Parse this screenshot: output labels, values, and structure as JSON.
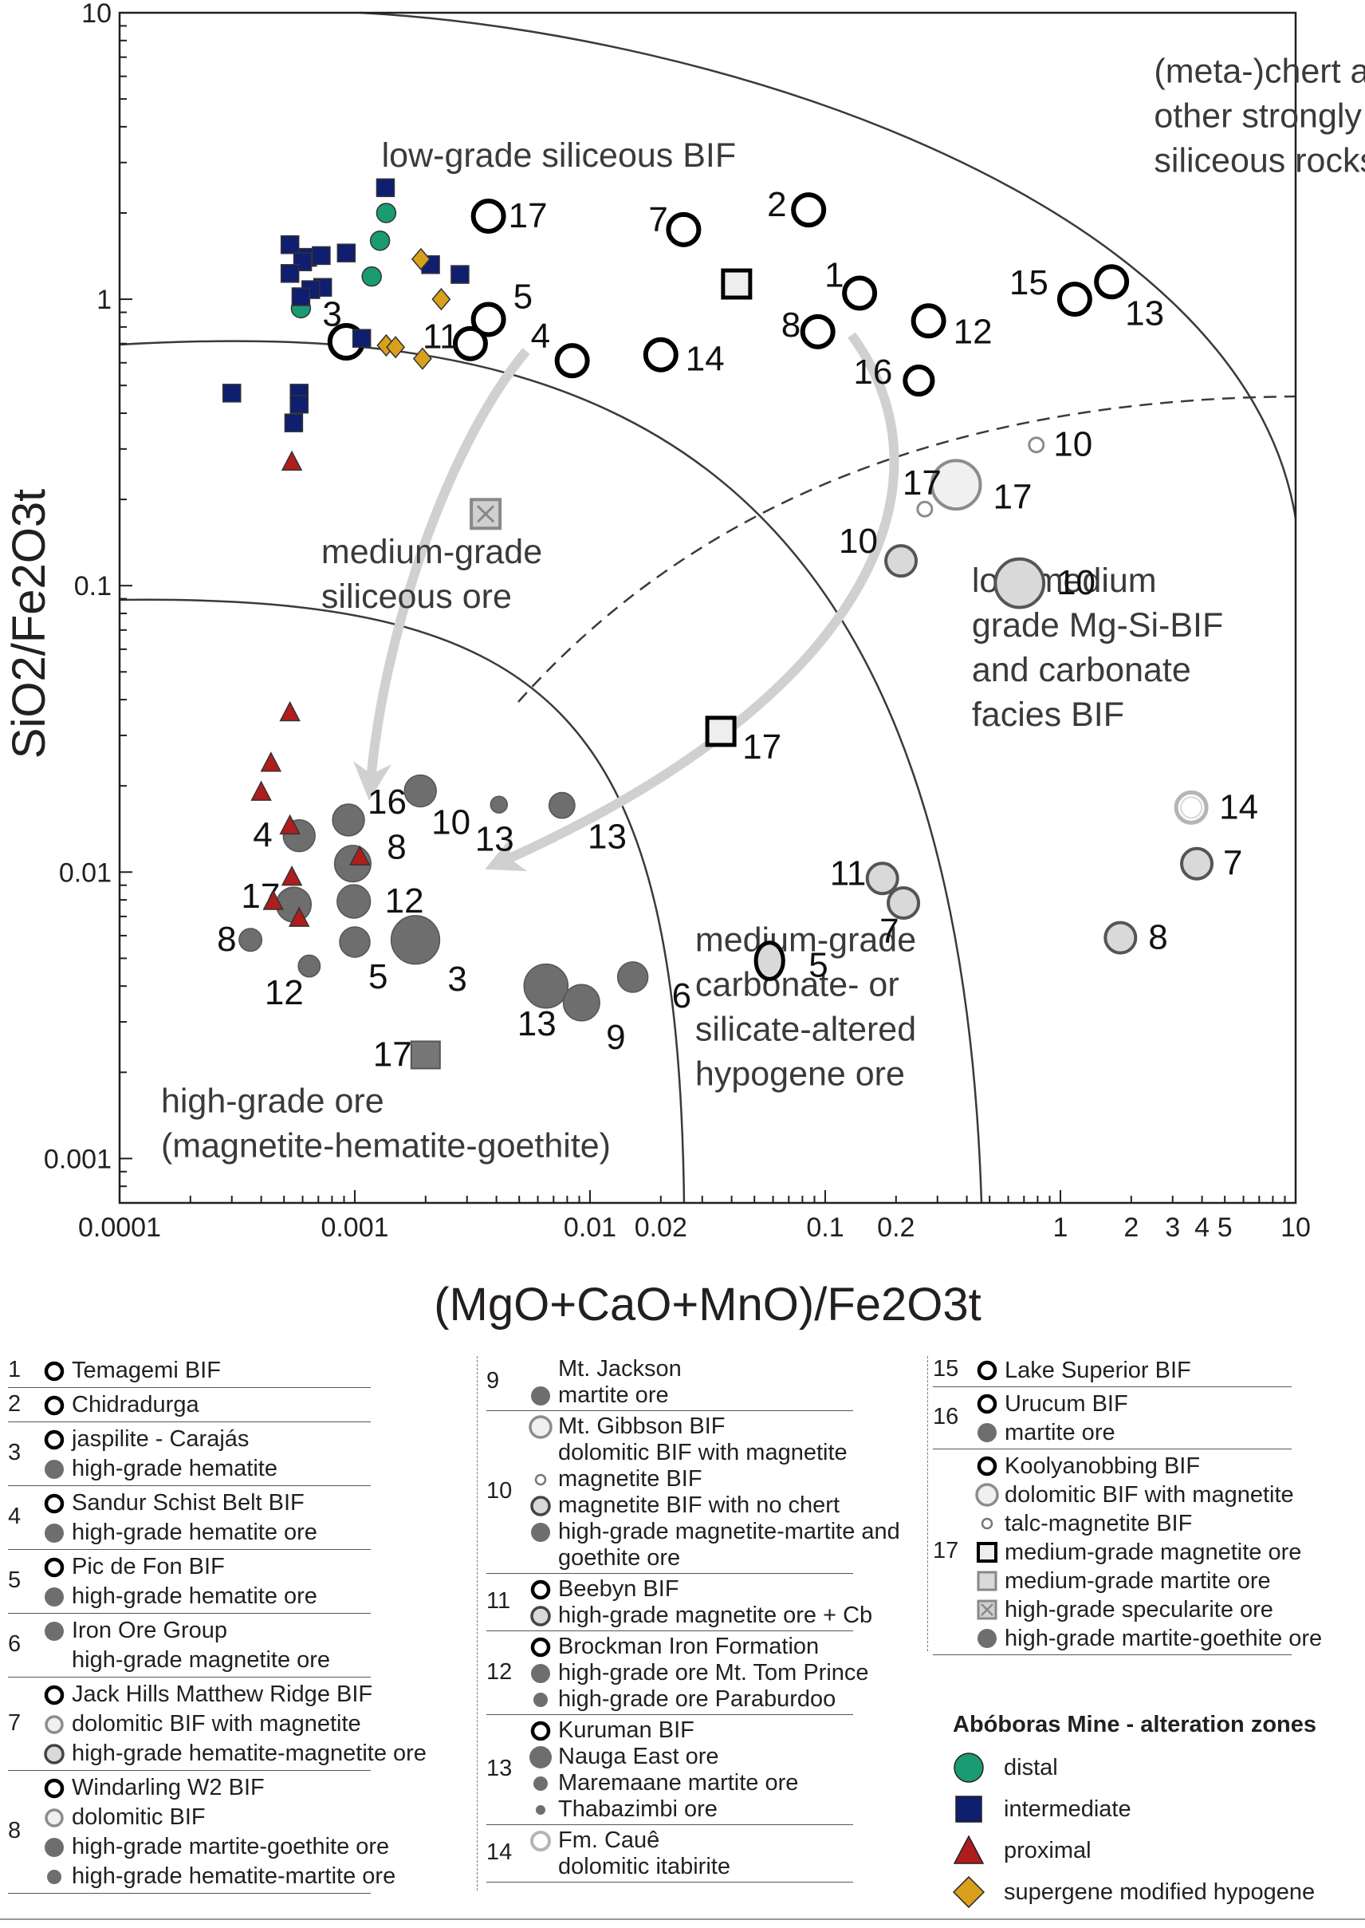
{
  "chart_data": {
    "type": "scatter",
    "xscale": "log",
    "yscale": "log",
    "xlim": [
      0.0001,
      10
    ],
    "ylim": [
      0.0007,
      10
    ],
    "xlabel": "(MgO+CaO+MnO)/Fe2O3t",
    "ylabel": "SiO2/Fe2O3t",
    "x_ticks": [
      "0.0001",
      "0.001",
      "0.01",
      "0.02",
      "0.1",
      "0.2",
      "1",
      "2",
      "3",
      "4",
      "5",
      "10"
    ],
    "x_tick_values": [
      0.0001,
      0.001,
      0.01,
      0.02,
      0.1,
      0.2,
      1,
      2,
      3,
      4,
      5,
      10
    ],
    "y_ticks": [
      "10",
      "1",
      "0.1",
      "0.01",
      "0.001"
    ],
    "y_tick_values": [
      10,
      1,
      0.1,
      0.01,
      0.001
    ],
    "field_labels": [
      {
        "id": "chert",
        "lines": [
          "(meta-)chert and",
          "other strongly",
          "siliceous rocks"
        ],
        "x": 2.5,
        "y": 5.7
      },
      {
        "id": "low-grade-siliceous",
        "lines": [
          "low-grade siliceous BIF"
        ],
        "x": 0.0013,
        "y": 2.9
      },
      {
        "id": "medium-grade-siliceous",
        "lines": [
          "medium-grade",
          "siliceous ore"
        ],
        "x": 0.00072,
        "y": 0.12
      },
      {
        "id": "low-medium-mg-si",
        "lines": [
          "low-medium",
          "grade Mg-Si-BIF",
          "and carbonate",
          "facies BIF"
        ],
        "x": 0.42,
        "y": 0.095
      },
      {
        "id": "medium-grade-carbonate",
        "lines": [
          "medium-grade",
          "carbonate- or",
          "silicate-altered",
          "hypogene ore"
        ],
        "x": 0.028,
        "y": 0.0053
      },
      {
        "id": "high-grade-ore",
        "lines": [
          "high-grade ore",
          "(magnetite-hematite-goethite)"
        ],
        "x": 0.00015,
        "y": 0.00145
      }
    ],
    "series": [
      {
        "name": "distal",
        "marker": "circle",
        "color": "#1a9b72",
        "points": [
          [
            0.00136,
            2.0
          ],
          [
            0.00128,
            1.6
          ],
          [
            0.00118,
            1.2
          ],
          [
            0.00059,
            0.93
          ]
        ]
      },
      {
        "name": "intermediate",
        "marker": "square",
        "color": "#0f1e6e",
        "points": [
          [
            0.00135,
            2.45
          ],
          [
            0.00053,
            1.55
          ],
          [
            0.00063,
            1.4
          ],
          [
            0.00072,
            1.42
          ],
          [
            0.00092,
            1.45
          ],
          [
            0.0006,
            1.35
          ],
          [
            0.00073,
            1.1
          ],
          [
            0.00053,
            1.23
          ],
          [
            0.00065,
            1.08
          ],
          [
            0.00059,
            1.02
          ],
          [
            0.0021,
            1.32
          ],
          [
            0.0028,
            1.22
          ],
          [
            0.00107,
            0.73
          ],
          [
            0.0003,
            0.47
          ],
          [
            0.00058,
            0.47
          ],
          [
            0.00058,
            0.43
          ],
          [
            0.00055,
            0.37
          ]
        ]
      },
      {
        "name": "proximal",
        "marker": "triangle",
        "color": "#b01d1d",
        "points": [
          [
            0.00054,
            0.27
          ],
          [
            0.00053,
            0.036
          ],
          [
            0.00044,
            0.024
          ],
          [
            0.0004,
            0.019
          ],
          [
            0.00053,
            0.0145
          ],
          [
            0.00105,
            0.0113
          ],
          [
            0.00054,
            0.0096
          ],
          [
            0.00045,
            0.0079
          ],
          [
            0.00058,
            0.0069
          ]
        ]
      },
      {
        "name": "supergene modified hypogene",
        "marker": "diamond",
        "color": "#d9a01c",
        "points": [
          [
            0.00191,
            1.38
          ],
          [
            0.00233,
            1.0
          ],
          [
            0.00136,
            0.69
          ],
          [
            0.00149,
            0.68
          ],
          [
            0.00194,
            0.62
          ]
        ]
      }
    ],
    "literature_points": [
      {
        "x": 0.0037,
        "y": 1.95,
        "style": "open",
        "size": 1,
        "label": "17",
        "ldx": 16,
        "ldy": 0
      },
      {
        "x": 0.085,
        "y": 2.05,
        "style": "open",
        "size": 1,
        "label": "2",
        "ldx": -52,
        "ldy": -6
      },
      {
        "x": 0.025,
        "y": 1.75,
        "style": "open",
        "size": 1,
        "label": "7",
        "ldx": -44,
        "ldy": -12
      },
      {
        "x": 0.14,
        "y": 1.05,
        "style": "open",
        "size": 1,
        "label": "1",
        "ldx": -44,
        "ldy": -22
      },
      {
        "x": 0.093,
        "y": 0.77,
        "style": "open",
        "size": 1,
        "label": "8",
        "ldx": -46,
        "ldy": -8
      },
      {
        "x": 0.00092,
        "y": 0.71,
        "style": "open",
        "size": 1.08,
        "label": "3",
        "ldx": -30,
        "ldy": -34
      },
      {
        "x": 0.0037,
        "y": 0.85,
        "style": "open",
        "size": 1,
        "label": "5",
        "ldx": 22,
        "ldy": -28
      },
      {
        "x": 0.0031,
        "y": 0.7,
        "style": "open",
        "size": 1,
        "label": "11",
        "ldx": -60,
        "ldy": -8
      },
      {
        "x": 0.0084,
        "y": 0.61,
        "style": "open",
        "size": 1,
        "label": "4",
        "ldx": -52,
        "ldy": -30
      },
      {
        "x": 0.02,
        "y": 0.64,
        "style": "open",
        "size": 1,
        "label": "14",
        "ldx": 22,
        "ldy": 6
      },
      {
        "x": 0.275,
        "y": 0.84,
        "style": "open",
        "size": 1,
        "label": "12",
        "ldx": 22,
        "ldy": 14
      },
      {
        "x": 1.15,
        "y": 1.0,
        "style": "open",
        "size": 1,
        "label": "15",
        "ldx": -82,
        "ldy": -20
      },
      {
        "x": 1.65,
        "y": 1.15,
        "style": "open",
        "size": 1,
        "label": "13",
        "ldx": 8,
        "ldy": 40
      },
      {
        "x": 0.25,
        "y": 0.52,
        "style": "open",
        "size": 0.9,
        "label": "16",
        "ldx": -82,
        "ldy": -10
      },
      {
        "x": 0.042,
        "y": 1.13,
        "style": "open-square",
        "size": 1,
        "label": "",
        "ldx": 0,
        "ldy": 0
      },
      {
        "x": 0.036,
        "y": 0.031,
        "style": "open-square",
        "size": 1,
        "label": "17",
        "ldx": 18,
        "ldy": 20
      },
      {
        "x": 0.0036,
        "y": 0.178,
        "style": "cross-square",
        "size": 1,
        "label": "",
        "ldx": 0,
        "ldy": 0
      },
      {
        "x": 0.002,
        "y": 0.0023,
        "style": "filled-square",
        "size": 1,
        "label": "17",
        "ldx": -66,
        "ldy": 0
      },
      {
        "x": 0.79,
        "y": 0.31,
        "style": "tiny-open",
        "size": 0.5,
        "label": "10",
        "ldx": 22,
        "ldy": 0
      },
      {
        "x": 0.36,
        "y": 0.225,
        "style": "light-open",
        "size": 1.6,
        "label": "17",
        "ldx": 26,
        "ldy": 16
      },
      {
        "x": 0.265,
        "y": 0.185,
        "style": "tiny-open",
        "size": 0.5,
        "label": "17",
        "ldx": -28,
        "ldy": -32
      },
      {
        "x": 0.21,
        "y": 0.122,
        "style": "light-fill",
        "size": 1,
        "label": "10",
        "ldx": -78,
        "ldy": -24
      },
      {
        "x": 0.67,
        "y": 0.102,
        "style": "light-fill",
        "size": 1.6,
        "label": "10",
        "ldx": 26,
        "ldy": 0
      },
      {
        "x": 3.6,
        "y": 0.0168,
        "style": "light-open-pale",
        "size": 1,
        "label": "14",
        "ldx": 26,
        "ldy": 0
      },
      {
        "x": 3.8,
        "y": 0.0107,
        "style": "light-fill",
        "size": 1,
        "label": "7",
        "ldx": 24,
        "ldy": 0
      },
      {
        "x": 1.8,
        "y": 0.0059,
        "style": "light-fill",
        "size": 1,
        "label": "8",
        "ldx": 26,
        "ldy": 0
      },
      {
        "x": 0.175,
        "y": 0.0095,
        "style": "light-fill",
        "size": 1,
        "label": "11",
        "ldx": -66,
        "ldy": -6
      },
      {
        "x": 0.215,
        "y": 0.0078,
        "style": "light-fill",
        "size": 1,
        "label": "7",
        "ldx": -30,
        "ldy": 36
      },
      {
        "x": 0.058,
        "y": 0.0049,
        "style": "light-fill-ellipse",
        "size": 1,
        "label": "5",
        "ldx": 40,
        "ldy": 6
      },
      {
        "x": 0.00058,
        "y": 0.0134,
        "style": "filled",
        "size": 1.05,
        "label": "4",
        "ldx": -58,
        "ldy": 0
      },
      {
        "x": 0.00055,
        "y": 0.0077,
        "style": "filled",
        "size": 1.15,
        "label": "17",
        "ldx": -66,
        "ldy": -10
      },
      {
        "x": 0.00036,
        "y": 0.0058,
        "style": "filled",
        "size": 0.75,
        "label": "8",
        "ldx": -42,
        "ldy": 0
      },
      {
        "x": 0.00064,
        "y": 0.0047,
        "style": "filled",
        "size": 0.72,
        "label": "12",
        "ldx": -56,
        "ldy": 34
      },
      {
        "x": 0.00094,
        "y": 0.0152,
        "style": "filled",
        "size": 1.05,
        "label": "16",
        "ldx": 14,
        "ldy": -22
      },
      {
        "x": 0.00098,
        "y": 0.0107,
        "style": "filled",
        "size": 1.2,
        "label": "8",
        "ldx": 30,
        "ldy": -20
      },
      {
        "x": 0.00099,
        "y": 0.0079,
        "style": "filled",
        "size": 1.1,
        "label": "12",
        "ldx": 28,
        "ldy": 0
      },
      {
        "x": 0.001,
        "y": 0.0057,
        "style": "filled",
        "size": 1.0,
        "label": "5",
        "ldx": 8,
        "ldy": 44
      },
      {
        "x": 0.00181,
        "y": 0.0058,
        "style": "filled",
        "size": 1.6,
        "label": "3",
        "ldx": 20,
        "ldy": 50
      },
      {
        "x": 0.0019,
        "y": 0.0192,
        "style": "filled",
        "size": 1.05,
        "label": "10",
        "ldx": 4,
        "ldy": 40
      },
      {
        "x": 0.0041,
        "y": 0.0172,
        "style": "filled",
        "size": 0.55,
        "label": "13",
        "ldx": -30,
        "ldy": 44
      },
      {
        "x": 0.0076,
        "y": 0.0171,
        "style": "filled",
        "size": 0.85,
        "label": "13",
        "ldx": 26,
        "ldy": 40
      },
      {
        "x": 0.0065,
        "y": 0.004,
        "style": "filled",
        "size": 1.45,
        "label": "13",
        "ldx": -36,
        "ldy": 48
      },
      {
        "x": 0.0092,
        "y": 0.0035,
        "style": "filled",
        "size": 1.2,
        "label": "9",
        "ldx": 18,
        "ldy": 44
      },
      {
        "x": 0.0152,
        "y": 0.0043,
        "style": "filled",
        "size": 1.0,
        "label": "6",
        "ldx": 40,
        "ldy": 24
      }
    ]
  },
  "legend": {
    "col1": [
      {
        "num": "1",
        "items": [
          {
            "sym": "open",
            "text": "Temagemi BIF"
          }
        ]
      },
      {
        "num": "2",
        "items": [
          {
            "sym": "open",
            "text": "Chidradurga"
          }
        ]
      },
      {
        "num": "3",
        "items": [
          {
            "sym": "open",
            "text": "jaspilite - Carajás"
          },
          {
            "sym": "filled",
            "text": "high-grade hematite"
          }
        ]
      },
      {
        "num": "4",
        "items": [
          {
            "sym": "open",
            "text": "Sandur Schist Belt BIF"
          },
          {
            "sym": "filled",
            "text": "high-grade hematite ore"
          }
        ]
      },
      {
        "num": "5",
        "items": [
          {
            "sym": "open",
            "text": "Pic de Fon BIF"
          },
          {
            "sym": "filled",
            "text": "high-grade hematite ore"
          }
        ]
      },
      {
        "num": "6",
        "items": [
          {
            "sym": "filled",
            "text": "Iron Ore Group"
          },
          {
            "sym": "none",
            "text": "high-grade magnetite ore"
          }
        ]
      },
      {
        "num": "7",
        "items": [
          {
            "sym": "open",
            "text": "Jack Hills Matthew Ridge BIF"
          },
          {
            "sym": "light-open",
            "text": "dolomitic BIF with magnetite"
          },
          {
            "sym": "light-fill",
            "text": "high-grade hematite-magnetite ore"
          }
        ]
      },
      {
        "num": "8",
        "items": [
          {
            "sym": "open",
            "text": "Windarling W2 BIF"
          },
          {
            "sym": "light-open",
            "text": "dolomitic BIF"
          },
          {
            "sym": "filled",
            "text": "high-grade martite-goethite ore"
          },
          {
            "sym": "filled-small",
            "text": "high-grade hematite-martite ore"
          }
        ]
      }
    ],
    "col2": [
      {
        "num": "9",
        "items": [
          {
            "sym": "none",
            "text": "Mt. Jackson"
          },
          {
            "sym": "filled",
            "text": "martite ore"
          }
        ]
      },
      {
        "num": "10",
        "items": [
          {
            "sym": "light-open-big",
            "text": "Mt. Gibbson BIF"
          },
          {
            "sym": "none",
            "text": "dolomitic BIF with magnetite"
          },
          {
            "sym": "tiny-open",
            "text": "magnetite BIF"
          },
          {
            "sym": "light-fill",
            "text": "magnetite BIF with no chert"
          },
          {
            "sym": "filled",
            "text": "high-grade magnetite-martite and"
          },
          {
            "sym": "none",
            "text": "goethite ore"
          }
        ]
      },
      {
        "num": "11",
        "items": [
          {
            "sym": "open",
            "text": "Beebyn BIF"
          },
          {
            "sym": "light-fill",
            "text": "high-grade magnetite ore + Cb"
          }
        ]
      },
      {
        "num": "12",
        "items": [
          {
            "sym": "open",
            "text": "Brockman Iron Formation"
          },
          {
            "sym": "filled",
            "text": "high-grade ore Mt. Tom Prince"
          },
          {
            "sym": "filled-small",
            "text": "high-grade ore Paraburdoo"
          }
        ]
      },
      {
        "num": "13",
        "items": [
          {
            "sym": "open",
            "text": "Kuruman BIF"
          },
          {
            "sym": "filled-big",
            "text": "Nauga East ore"
          },
          {
            "sym": "filled-small",
            "text": "Maremaane martite ore"
          },
          {
            "sym": "filled-tiny",
            "text": "Thabazimbi ore"
          }
        ]
      },
      {
        "num": "14",
        "items": [
          {
            "sym": "light-open-pale",
            "text": "Fm. Cauê"
          },
          {
            "sym": "none",
            "text": "dolomitic itabirite"
          }
        ]
      }
    ],
    "col3": [
      {
        "num": "15",
        "items": [
          {
            "sym": "open",
            "text": "Lake Superior BIF"
          }
        ]
      },
      {
        "num": "16",
        "items": [
          {
            "sym": "open",
            "text": "Urucum BIF"
          },
          {
            "sym": "filled",
            "text": "martite ore"
          }
        ]
      },
      {
        "num": "17",
        "items": [
          {
            "sym": "open",
            "text": "Koolyanobbing BIF"
          },
          {
            "sym": "light-open-big",
            "text": "dolomitic BIF with magnetite"
          },
          {
            "sym": "tiny-open",
            "text": "talc-magnetite BIF"
          },
          {
            "sym": "open-square",
            "text": "medium-grade magnetite ore"
          },
          {
            "sym": "light-square",
            "text": "medium-grade martite ore"
          },
          {
            "sym": "cross-square",
            "text": "high-grade specularite ore"
          },
          {
            "sym": "filled",
            "text": "high-grade martite-goethite ore"
          }
        ]
      }
    ],
    "zones": {
      "title": "Abóboras Mine - alteration zones",
      "items": [
        {
          "sym": "circle",
          "color": "#1a9b72",
          "text": "distal"
        },
        {
          "sym": "square",
          "color": "#0f1e6e",
          "text": "intermediate"
        },
        {
          "sym": "triangle",
          "color": "#b01d1d",
          "text": "proximal"
        },
        {
          "sym": "diamond",
          "color": "#d9a01c",
          "text": "supergene modified hypogene"
        }
      ]
    }
  }
}
